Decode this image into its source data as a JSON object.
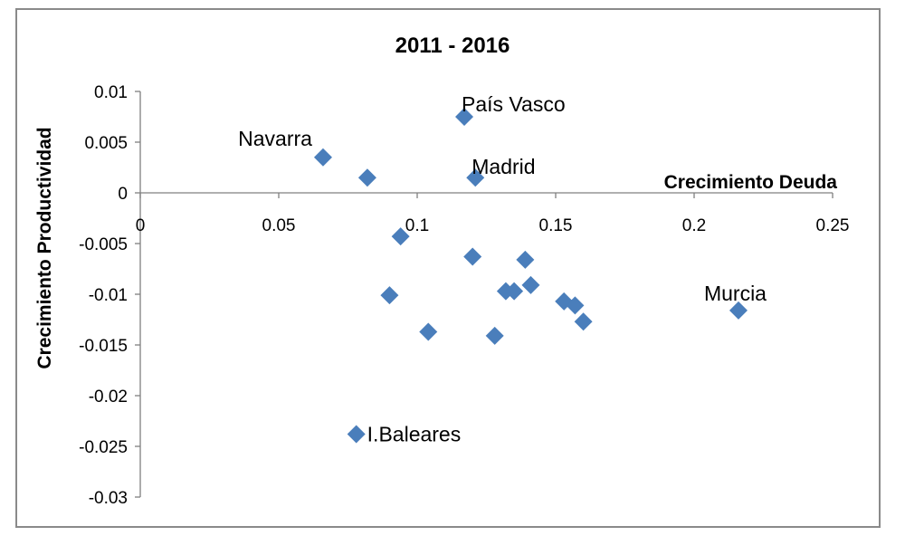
{
  "chart_data": {
    "type": "scatter",
    "title": "2011 - 2016",
    "xlabel": "Crecimiento Deuda",
    "ylabel": "Crecimiento Productividad",
    "xlim": [
      0,
      0.25
    ],
    "ylim": [
      -0.03,
      0.01
    ],
    "x_ticks": [
      "0",
      "0.05",
      "0.1",
      "0.15",
      "0.2",
      "0.25"
    ],
    "y_ticks": [
      "0.01",
      "0.005",
      "0",
      "-0.005",
      "-0.01",
      "-0.015",
      "-0.02",
      "-0.025",
      "-0.03"
    ],
    "grid": false,
    "marker": "diamond",
    "marker_color": "#4a7ebb",
    "points": [
      {
        "x": 0.117,
        "y": 0.0075,
        "label": "País Vasco"
      },
      {
        "x": 0.066,
        "y": 0.0035,
        "label": "Navarra"
      },
      {
        "x": 0.082,
        "y": 0.0015,
        "label": ""
      },
      {
        "x": 0.121,
        "y": 0.0015,
        "label": "Madrid"
      },
      {
        "x": 0.094,
        "y": -0.0043,
        "label": ""
      },
      {
        "x": 0.12,
        "y": -0.0063,
        "label": ""
      },
      {
        "x": 0.139,
        "y": -0.0066,
        "label": ""
      },
      {
        "x": 0.141,
        "y": -0.0091,
        "label": ""
      },
      {
        "x": 0.132,
        "y": -0.0097,
        "label": ""
      },
      {
        "x": 0.135,
        "y": -0.0097,
        "label": ""
      },
      {
        "x": 0.09,
        "y": -0.0101,
        "label": ""
      },
      {
        "x": 0.153,
        "y": -0.0107,
        "label": ""
      },
      {
        "x": 0.157,
        "y": -0.0111,
        "label": ""
      },
      {
        "x": 0.16,
        "y": -0.0127,
        "label": ""
      },
      {
        "x": 0.104,
        "y": -0.0137,
        "label": ""
      },
      {
        "x": 0.128,
        "y": -0.0141,
        "label": ""
      },
      {
        "x": 0.216,
        "y": -0.0116,
        "label": "Murcia"
      },
      {
        "x": 0.078,
        "y": -0.0238,
        "label": "I.Baleares"
      }
    ]
  }
}
